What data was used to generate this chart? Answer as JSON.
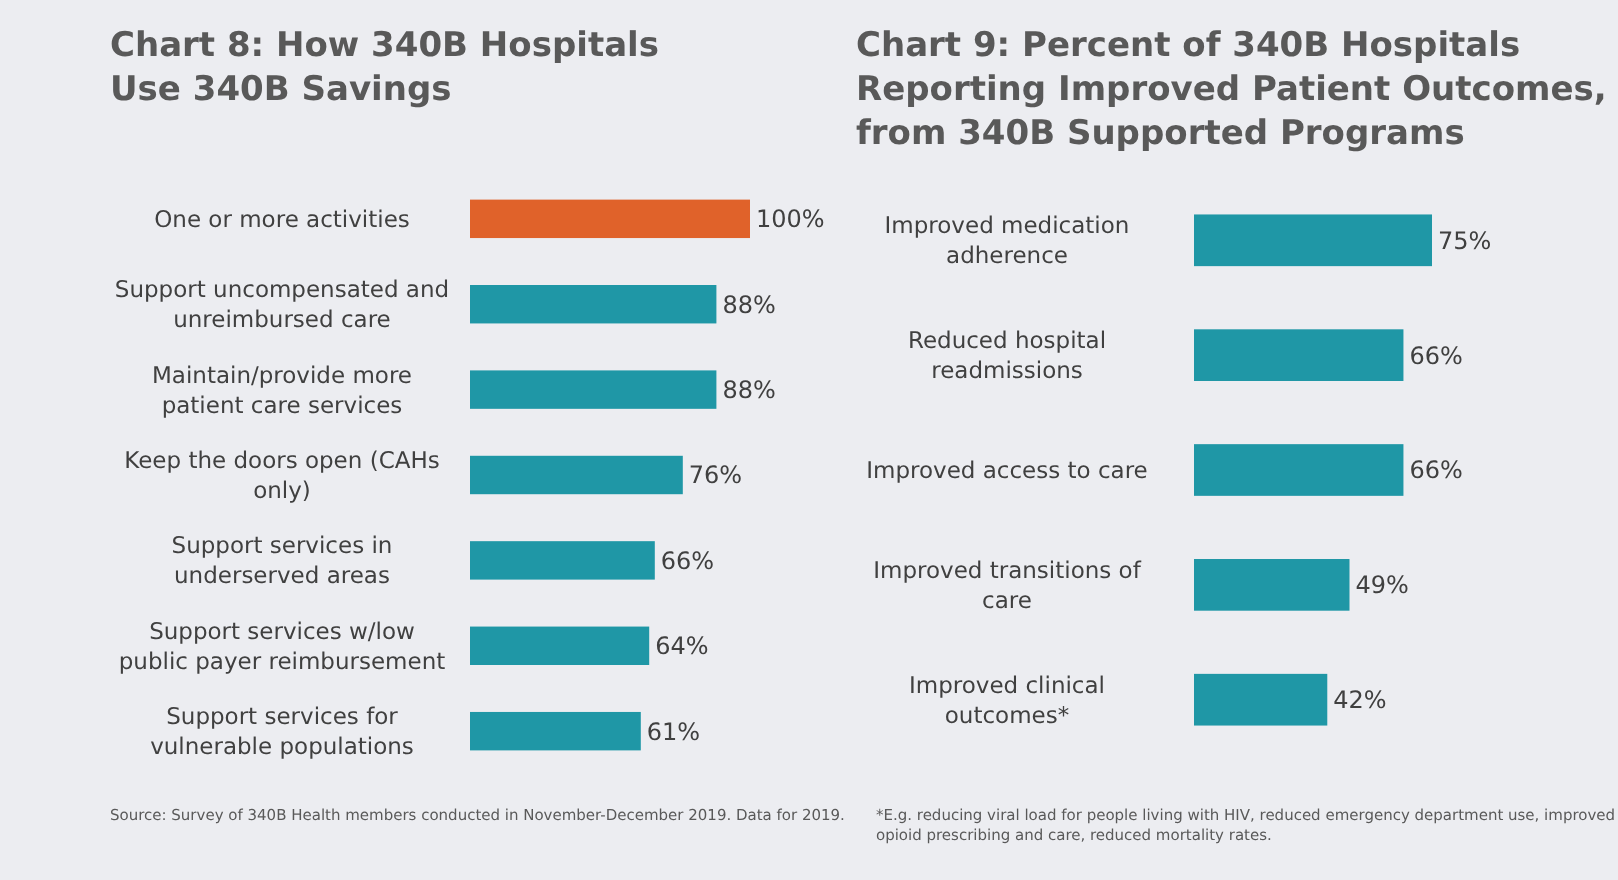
{
  "chart_data": [
    {
      "type": "bar",
      "orientation": "horizontal",
      "title": "Chart 8: How 340B Hospitals Use 340B Savings",
      "categories": [
        "One or more activities",
        "Support uncompensated and unreimbursed care",
        "Maintain/provide more patient care services",
        "Keep the doors open (CAHs only)",
        "Support services in underserved areas",
        "Support services w/low public payer reimbursement",
        "Support services for vulnerable populations"
      ],
      "values": [
        100,
        88,
        88,
        76,
        66,
        64,
        61
      ],
      "value_labels": [
        "100%",
        "88%",
        "88%",
        "76%",
        "66%",
        "64%",
        "61%"
      ],
      "colors": [
        "#e0622a",
        "#1f97a6",
        "#1f97a6",
        "#1f97a6",
        "#1f97a6",
        "#1f97a6",
        "#1f97a6"
      ],
      "annotations": [
        "Source:  Survey of 340B Health members conducted in November-December 2019. Data for 2019."
      ]
    },
    {
      "type": "bar",
      "orientation": "horizontal",
      "title": "Chart 9: Percent of 340B Hospitals Reporting Improved Patient Outcomes, from 340B Supported Programs",
      "categories": [
        "Improved medication adherence",
        "Reduced hospital readmissions",
        "Improved access to care",
        "Improved transitions of care",
        "Improved clinical outcomes*"
      ],
      "values": [
        75,
        66,
        66,
        49,
        42
      ],
      "value_labels": [
        "75%",
        "66%",
        "66%",
        "49%",
        "42%"
      ],
      "colors": [
        "#1f97a6",
        "#1f97a6",
        "#1f97a6",
        "#1f97a6",
        "#1f97a6"
      ],
      "annotations": [
        "*E.g. reducing viral load for people living with HIV, reduced emergency department use, improved opioid prescribing and care, reduced mortality rates."
      ]
    }
  ]
}
